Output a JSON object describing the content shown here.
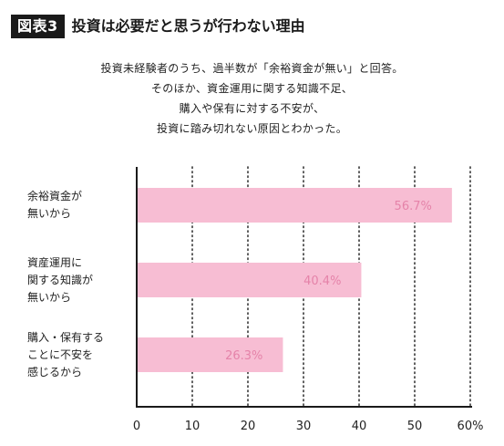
{
  "header": {
    "figure_label": "図表3",
    "title": "投資は必要だと思うが行わない理由"
  },
  "subtitle_lines": [
    "投資未経験者のうち、過半数が「余裕資金が無い」と回答。",
    "そのほか、資金運用に関する知識不足、",
    "購入や保有に対する不安が、",
    "投資に踏み切れない原因とわかった。"
  ],
  "colors": {
    "bar": "#f7bdd3",
    "bar_label": "#e583a9",
    "axis": "#1a1a1a",
    "grid": "#1a1a1a"
  },
  "chart_data": {
    "type": "bar",
    "orientation": "horizontal",
    "categories": [
      [
        "余裕資金が",
        "無いから"
      ],
      [
        "資産運用に",
        "関する知識が",
        "無いから"
      ],
      [
        "購入・保有する",
        "ことに不安を",
        "感じるから"
      ]
    ],
    "values": [
      56.7,
      40.4,
      26.3
    ],
    "value_labels": [
      "56.7%",
      "40.4%",
      "26.3%"
    ],
    "xlim": [
      0,
      60
    ],
    "xticks": [
      0,
      10,
      20,
      30,
      40,
      50,
      60
    ],
    "xtick_labels": [
      "0",
      "10",
      "20",
      "30",
      "40",
      "50",
      "60%"
    ],
    "grid": "vertical dotted",
    "legend": "none"
  }
}
